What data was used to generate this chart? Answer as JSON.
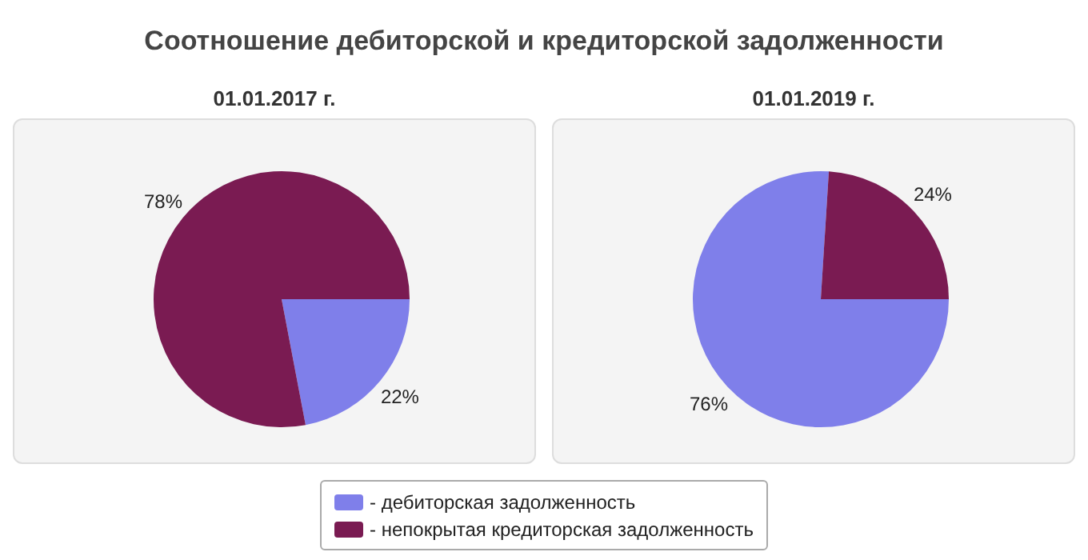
{
  "chart_data": [
    {
      "type": "pie",
      "title": "Соотношение дебиторской и кредиторской задолженности",
      "subtitle": "01.01.2017 г.",
      "categories": [
        "- дебиторская задолженность",
        "- непокрытая кредиторская задолженность"
      ],
      "values": [
        22,
        78
      ],
      "value_labels": [
        "22%",
        "78%"
      ],
      "colors": [
        "#7f7fea",
        "#7a1b52"
      ],
      "legend": "bottom"
    },
    {
      "type": "pie",
      "subtitle": "01.01.2019 г.",
      "values": [
        76,
        24
      ],
      "value_labels": [
        "76%",
        "24%"
      ],
      "colors": [
        "#7f7fea",
        "#7a1b52"
      ]
    }
  ]
}
